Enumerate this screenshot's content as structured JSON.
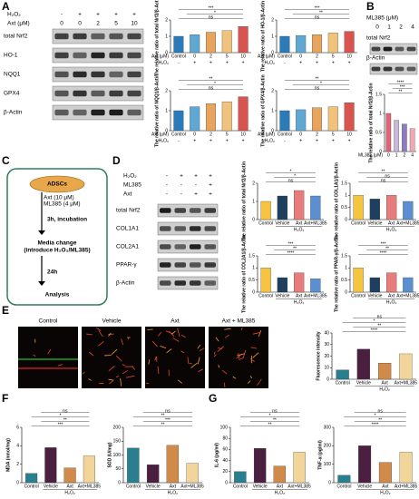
{
  "panels": {
    "a": "A",
    "b": "B",
    "c": "C",
    "d": "D",
    "e": "E",
    "f": "F",
    "g": "G"
  },
  "blot_a": {
    "h2o2": "H₂O₂",
    "h2o2_signs": [
      "-",
      "+",
      "+",
      "+",
      "+"
    ],
    "axt": "Axt (μM)",
    "axt_doses": [
      "0",
      "0",
      "2",
      "5",
      "10"
    ],
    "rows": [
      "total Nrf2",
      "HO-1",
      "NQQ1",
      "GPX4",
      "β-Actin"
    ]
  },
  "blot_b": {
    "ml385": "ML385 (μM)",
    "doses": [
      "0",
      "1",
      "2",
      "4"
    ],
    "rows": [
      "total Nrf2",
      "β-Actin"
    ]
  },
  "flow": {
    "cells": "ADSCs",
    "treatment": [
      "Axt (10 μM)",
      "ML385 (4 μM)"
    ],
    "steps": [
      "3h, incubation",
      "Media change",
      "(introduce H₂O₂/ML385)",
      "24h",
      "Analysis"
    ]
  },
  "blot_d": {
    "conditions": [
      "H₂O₂",
      "ML385",
      "Axt"
    ],
    "signs": [
      [
        "-",
        "+",
        "+",
        "+"
      ],
      [
        "-",
        "-",
        "-",
        "+"
      ],
      [
        "-",
        "-",
        "+",
        "+"
      ]
    ],
    "rows": [
      "total Nrf2",
      "COL1A1",
      "COL2A1",
      "PPAR-γ",
      "β-Actin"
    ]
  },
  "images_e": [
    "Control",
    "Vehicle",
    "Axt",
    "Axt + ML385"
  ],
  "chart_data": [
    {
      "type": "bar",
      "ylabel": "The relative ratio of total Nrf2/β-Actin",
      "categories": [
        "Control",
        "0",
        "2",
        "5",
        "10"
      ],
      "category_label": "Axt (μM)",
      "sub_row": {
        "label": "H₂O₂",
        "values": [
          "-",
          "+",
          "+",
          "+",
          "+"
        ]
      },
      "values": [
        1.0,
        1.1,
        1.25,
        1.35,
        1.6
      ],
      "colors": [
        "#2b7bba",
        "#5fa8d3",
        "#e8a35c",
        "#f0c27b",
        "#d9534f"
      ],
      "ylim": [
        0,
        2
      ],
      "yticks": [
        0,
        1,
        2
      ],
      "annotations": [
        "ns",
        "*",
        "***"
      ]
    },
    {
      "type": "bar",
      "ylabel": "The relative ratio of HO-1/β-Actin",
      "categories": [
        "Control",
        "0",
        "2",
        "5",
        "10"
      ],
      "category_label": "Axt (μM)",
      "sub_row": {
        "label": "H₂O₂",
        "values": [
          "-",
          "+",
          "+",
          "+",
          "+"
        ]
      },
      "values": [
        1.0,
        1.05,
        1.1,
        1.2,
        1.3
      ],
      "colors": [
        "#2b7bba",
        "#5fa8d3",
        "#e8a35c",
        "#f0c27b",
        "#d9534f"
      ],
      "ylim": [
        0,
        2
      ],
      "yticks": [
        0,
        1,
        2
      ],
      "annotations": [
        "ns",
        "**",
        "***"
      ]
    },
    {
      "type": "bar",
      "ylabel": "The relative ratio of NQQ1/β-Actin",
      "categories": [
        "Control",
        "0",
        "2",
        "5",
        "10"
      ],
      "category_label": "Axt (μM)",
      "sub_row": {
        "label": "H₂O₂",
        "values": [
          "-",
          "+",
          "+",
          "+",
          "+"
        ]
      },
      "values": [
        1.0,
        1.2,
        1.35,
        1.45,
        1.7
      ],
      "colors": [
        "#2b7bba",
        "#5fa8d3",
        "#e8a35c",
        "#f0c27b",
        "#d9534f"
      ],
      "ylim": [
        0,
        2
      ],
      "yticks": [
        0,
        1,
        2
      ],
      "annotations": [
        "ns",
        "*",
        "**"
      ]
    },
    {
      "type": "bar",
      "ylabel": "The relative ratio of GPX4/β-Actin",
      "categories": [
        "Control",
        "0",
        "2",
        "5",
        "10"
      ],
      "category_label": "Axt (μM)",
      "sub_row": {
        "label": "H₂O₂",
        "values": [
          "-",
          "+",
          "+",
          "+",
          "+"
        ]
      },
      "values": [
        1.0,
        1.05,
        1.15,
        1.2,
        1.4
      ],
      "colors": [
        "#2b7bba",
        "#5fa8d3",
        "#e8a35c",
        "#f0c27b",
        "#d9534f"
      ],
      "ylim": [
        0,
        2
      ],
      "yticks": [
        0,
        1,
        2
      ],
      "annotations": [
        "ns",
        "*",
        "**"
      ]
    },
    {
      "type": "bar",
      "ylabel": "The relative ratio of total Nrf2/β-Actin",
      "categories": [
        "0",
        "1",
        "2",
        "4"
      ],
      "category_label": "ML385 (μM)",
      "values": [
        1.0,
        0.82,
        0.72,
        0.6
      ],
      "colors": [
        "#e06377",
        "#c9b8d9",
        "#8e7cc3",
        "#f2a7b5"
      ],
      "ylim": [
        0,
        1.5
      ],
      "yticks": [
        0,
        0.5,
        1,
        1.5
      ],
      "annotations": [
        "**",
        "***",
        "****"
      ]
    },
    {
      "type": "bar",
      "ylabel": "The relative ratio of total Nrf2/β-Actin",
      "categories": [
        "Control",
        "Vehicle",
        "Axt",
        "Axt+ML385"
      ],
      "group_label": "H₂O₂",
      "values": [
        1.0,
        1.3,
        1.6,
        1.3
      ],
      "colors": [
        "#f5c542",
        "#1f3f5f",
        "#e87c7c",
        "#5b8fd1"
      ],
      "ylim": [
        0,
        2
      ],
      "yticks": [
        0,
        1,
        2
      ],
      "annotations": [
        "ns",
        "*",
        "*"
      ]
    },
    {
      "type": "bar",
      "ylabel": "The relative ratio of COL1A1/β-Actin",
      "categories": [
        "Control",
        "Vehicle",
        "Axt",
        "Axt+ML385"
      ],
      "group_label": "H₂O₂",
      "values": [
        1.0,
        0.85,
        1.0,
        0.75
      ],
      "colors": [
        "#f5c542",
        "#1f3f5f",
        "#e87c7c",
        "#5b8fd1"
      ],
      "ylim": [
        0,
        1.5
      ],
      "yticks": [
        0,
        0.5,
        1,
        1.5
      ],
      "annotations": [
        "ns",
        "ns",
        "**"
      ]
    },
    {
      "type": "bar",
      "ylabel": "The relative ratio of COL2A1/β-Actin",
      "categories": [
        "Control",
        "Vehicle",
        "Axt",
        "Axt+ML385"
      ],
      "group_label": "H₂O₂",
      "values": [
        1.0,
        0.6,
        0.8,
        0.55
      ],
      "colors": [
        "#f5c542",
        "#1f3f5f",
        "#e87c7c",
        "#5b8fd1"
      ],
      "ylim": [
        0,
        1.5
      ],
      "yticks": [
        0,
        0.5,
        1,
        1.5
      ],
      "annotations": [
        "****",
        "**",
        "***"
      ]
    },
    {
      "type": "bar",
      "ylabel": "The relative ratio of PPAR-γ/β-Actin",
      "categories": [
        "Control",
        "Vehicle",
        "Axt",
        "Axt+ML385"
      ],
      "group_label": "H₂O₂",
      "values": [
        1.0,
        0.6,
        0.8,
        0.6
      ],
      "colors": [
        "#f5c542",
        "#1f3f5f",
        "#e87c7c",
        "#5b8fd1"
      ],
      "ylim": [
        0,
        1.5
      ],
      "yticks": [
        0,
        0.5,
        1,
        1.5
      ],
      "annotations": [
        "****",
        "**",
        "***"
      ]
    },
    {
      "type": "bar",
      "ylabel": "Fluorescence intensity",
      "categories": [
        "Control",
        "Vehicle",
        "Axt",
        "Axt+ML385"
      ],
      "group_label": "H₂O₂",
      "values": [
        8,
        26,
        14,
        22
      ],
      "colors": [
        "#2a7f8f",
        "#4a1f3f",
        "#d08a4a",
        "#f2d59a"
      ],
      "ylim": [
        0,
        40
      ],
      "yticks": [
        0,
        10,
        20,
        30,
        40
      ],
      "annotations": [
        "****",
        "**",
        "*",
        "ns"
      ]
    },
    {
      "type": "bar",
      "ylabel": "MDA (nmol/mg)",
      "categories": [
        "Control",
        "Vehicle",
        "Axt",
        "Axt+ML385"
      ],
      "group_label": "H₂O₂",
      "values": [
        1.0,
        3.8,
        1.6,
        2.9
      ],
      "colors": [
        "#2a7f8f",
        "#4a1f3f",
        "#d08a4a",
        "#f2d59a"
      ],
      "ylim": [
        0,
        6
      ],
      "yticks": [
        0,
        2,
        4,
        6
      ],
      "annotations": [
        "***",
        "**",
        "*",
        "ns"
      ]
    },
    {
      "type": "bar",
      "ylabel": "SOD (U/mg)",
      "categories": [
        "Control",
        "Vehicle",
        "Axt",
        "Axt+ML385"
      ],
      "group_label": "H₂O₂",
      "values": [
        125,
        65,
        135,
        70
      ],
      "colors": [
        "#2a7f8f",
        "#4a1f3f",
        "#d08a4a",
        "#f2d59a"
      ],
      "ylim": [
        0,
        200
      ],
      "yticks": [
        0,
        50,
        100,
        150,
        200
      ],
      "annotations": [
        "**",
        "***",
        "**",
        "ns"
      ]
    },
    {
      "type": "bar",
      "ylabel": "IL-6 (pg/ml)",
      "categories": [
        "Control",
        "Vehicle",
        "Axt",
        "Axt+ML385"
      ],
      "group_label": "H₂O₂",
      "values": [
        20,
        62,
        30,
        55
      ],
      "colors": [
        "#2a7f8f",
        "#4a1f3f",
        "#d08a4a",
        "#f2d59a"
      ],
      "ylim": [
        0,
        100
      ],
      "yticks": [
        0,
        20,
        40,
        60,
        80,
        100
      ],
      "annotations": [
        "**",
        "**",
        "*",
        "ns"
      ]
    },
    {
      "type": "bar",
      "ylabel": "TNF-α (pg/ml)",
      "categories": [
        "Control",
        "Vehicle",
        "Axt",
        "Axt+ML385"
      ],
      "group_label": "H₂O₂",
      "values": [
        40,
        200,
        110,
        165
      ],
      "colors": [
        "#2a7f8f",
        "#4a1f3f",
        "#d08a4a",
        "#f2d59a"
      ],
      "ylim": [
        0,
        300
      ],
      "yticks": [
        0,
        100,
        200,
        300
      ],
      "annotations": [
        "****",
        "**",
        "*",
        "ns"
      ]
    }
  ]
}
